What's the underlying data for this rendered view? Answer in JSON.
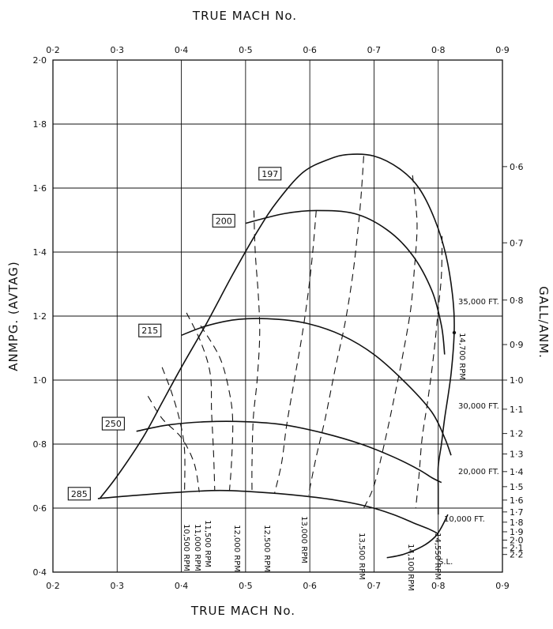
{
  "chart_data": {
    "type": "line",
    "top_title": "TRUE MACH No.",
    "bottom_title": "TRUE MACH No.",
    "ylabel": "ANMPG. (AVTAG)",
    "right_label": "GALL/ANM.",
    "xlim": [
      0.2,
      0.9
    ],
    "ylim": [
      0.4,
      2.0
    ],
    "x_ticks": [
      "0·2",
      "0·3",
      "0·4",
      "0·5",
      "0·6",
      "0·7",
      "0·8",
      "0·9"
    ],
    "y_ticks": [
      "0·4",
      "0·6",
      "0·8",
      "1·0",
      "1·2",
      "1·4",
      "1·6",
      "1·8",
      "2·0"
    ],
    "right_ticks": [
      "0·6",
      "0·7",
      "0·8",
      "0·9",
      "1·0",
      "1·1",
      "1·2",
      "1·3",
      "1·4",
      "1·5",
      "1·6",
      "1·7",
      "1·8",
      "1·9",
      "2·0",
      "2·1",
      "2·2"
    ],
    "right_tick_values": [
      1.667,
      1.429,
      1.25,
      1.111,
      1.0,
      0.909,
      0.833,
      0.769,
      0.714,
      0.667,
      0.625,
      0.588,
      0.556,
      0.526,
      0.5,
      0.476,
      0.455
    ],
    "series": [
      {
        "name": "35,000 FT.",
        "points": [
          [
            0.5,
            1.49
          ],
          [
            0.56,
            1.52
          ],
          [
            0.61,
            1.53
          ],
          [
            0.67,
            1.52
          ],
          [
            0.72,
            1.47
          ],
          [
            0.76,
            1.39
          ],
          [
            0.79,
            1.28
          ],
          [
            0.805,
            1.17
          ],
          [
            0.81,
            1.08
          ]
        ]
      },
      {
        "name": "30,000 FT.",
        "points": [
          [
            0.4,
            1.14
          ],
          [
            0.44,
            1.17
          ],
          [
            0.49,
            1.19
          ],
          [
            0.55,
            1.19
          ],
          [
            0.6,
            1.175
          ],
          [
            0.65,
            1.14
          ],
          [
            0.7,
            1.08
          ],
          [
            0.75,
            0.99
          ],
          [
            0.79,
            0.9
          ],
          [
            0.81,
            0.82
          ],
          [
            0.82,
            0.765
          ]
        ]
      },
      {
        "name": "20,000 FT.",
        "points": [
          [
            0.33,
            0.84
          ],
          [
            0.38,
            0.86
          ],
          [
            0.44,
            0.87
          ],
          [
            0.5,
            0.87
          ],
          [
            0.56,
            0.86
          ],
          [
            0.62,
            0.835
          ],
          [
            0.68,
            0.8
          ],
          [
            0.73,
            0.76
          ],
          [
            0.77,
            0.72
          ],
          [
            0.79,
            0.695
          ],
          [
            0.805,
            0.68
          ]
        ]
      },
      {
        "name": "10,000 FT.",
        "points": [
          [
            0.27,
            0.63
          ],
          [
            0.33,
            0.64
          ],
          [
            0.4,
            0.65
          ],
          [
            0.46,
            0.655
          ],
          [
            0.52,
            0.65
          ],
          [
            0.58,
            0.64
          ],
          [
            0.64,
            0.625
          ],
          [
            0.69,
            0.605
          ],
          [
            0.73,
            0.58
          ],
          [
            0.76,
            0.555
          ],
          [
            0.785,
            0.535
          ],
          [
            0.8,
            0.52
          ]
        ]
      },
      {
        "name": "S.L.",
        "points": [
          [
            0.72,
            0.445
          ],
          [
            0.745,
            0.455
          ],
          [
            0.775,
            0.48
          ],
          [
            0.795,
            0.51
          ],
          [
            0.805,
            0.54
          ],
          [
            0.815,
            0.58
          ]
        ]
      }
    ],
    "envelope": {
      "points": [
        [
          0.273,
          0.63
        ],
        [
          0.3,
          0.7
        ],
        [
          0.34,
          0.82
        ],
        [
          0.37,
          0.93
        ],
        [
          0.4,
          1.04
        ],
        [
          0.44,
          1.18
        ],
        [
          0.48,
          1.33
        ],
        [
          0.52,
          1.47
        ],
        [
          0.55,
          1.56
        ],
        [
          0.59,
          1.65
        ],
        [
          0.63,
          1.69
        ],
        [
          0.66,
          1.705
        ],
        [
          0.7,
          1.7
        ],
        [
          0.74,
          1.66
        ],
        [
          0.77,
          1.6
        ],
        [
          0.795,
          1.5
        ],
        [
          0.812,
          1.39
        ],
        [
          0.822,
          1.27
        ],
        [
          0.825,
          1.16
        ],
        [
          0.82,
          1.02
        ],
        [
          0.81,
          0.88
        ],
        [
          0.805,
          0.8
        ],
        [
          0.8,
          0.73
        ],
        [
          0.8,
          0.66
        ],
        [
          0.8,
          0.58
        ]
      ]
    },
    "tas_labels": [
      {
        "text": "197",
        "x": 0.538,
        "y": 1.645
      },
      {
        "text": "200",
        "x": 0.466,
        "y": 1.498
      },
      {
        "text": "215",
        "x": 0.351,
        "y": 1.155
      },
      {
        "text": "250",
        "x": 0.294,
        "y": 0.864
      },
      {
        "text": "285",
        "x": 0.241,
        "y": 0.645
      }
    ],
    "rpm_lines": [
      {
        "label": "10,500 RPM",
        "points": [
          [
            0.37,
            1.04
          ],
          [
            0.385,
            0.96
          ],
          [
            0.398,
            0.87
          ],
          [
            0.405,
            0.78
          ],
          [
            0.405,
            0.65
          ]
        ]
      },
      {
        "label": "11,000 RPM",
        "points": [
          [
            0.348,
            0.95
          ],
          [
            0.37,
            0.88
          ],
          [
            0.4,
            0.82
          ],
          [
            0.42,
            0.74
          ],
          [
            0.428,
            0.65
          ]
        ]
      },
      {
        "label": "11,500 RPM",
        "points": [
          [
            0.408,
            1.21
          ],
          [
            0.43,
            1.12
          ],
          [
            0.445,
            1.02
          ],
          [
            0.447,
            0.9
          ],
          [
            0.45,
            0.78
          ],
          [
            0.452,
            0.655
          ]
        ]
      },
      {
        "label": "12,000 RPM",
        "points": [
          [
            0.43,
            1.17
          ],
          [
            0.46,
            1.07
          ],
          [
            0.475,
            0.96
          ],
          [
            0.48,
            0.87
          ],
          [
            0.478,
            0.74
          ],
          [
            0.475,
            0.655
          ]
        ]
      },
      {
        "label": "12,500 RPM",
        "points": [
          [
            0.513,
            1.53
          ],
          [
            0.515,
            1.4
          ],
          [
            0.52,
            1.26
          ],
          [
            0.522,
            1.14
          ],
          [
            0.518,
            1.0
          ],
          [
            0.512,
            0.88
          ],
          [
            0.51,
            0.74
          ],
          [
            0.51,
            0.65
          ]
        ]
      },
      {
        "label": "13,000 RPM",
        "points": [
          [
            0.61,
            1.53
          ],
          [
            0.605,
            1.41
          ],
          [
            0.598,
            1.28
          ],
          [
            0.588,
            1.14
          ],
          [
            0.576,
            1.0
          ],
          [
            0.564,
            0.86
          ],
          [
            0.556,
            0.74
          ],
          [
            0.545,
            0.645
          ]
        ]
      },
      {
        "label": "13,500 RPM",
        "points": [
          [
            0.684,
            1.7
          ],
          [
            0.68,
            1.58
          ],
          [
            0.675,
            1.47
          ],
          [
            0.667,
            1.33
          ],
          [
            0.655,
            1.18
          ],
          [
            0.64,
            1.04
          ],
          [
            0.624,
            0.88
          ],
          [
            0.61,
            0.76
          ],
          [
            0.598,
            0.64
          ]
        ]
      },
      {
        "label": "14,100 RPM",
        "points": [
          [
            0.76,
            1.64
          ],
          [
            0.765,
            1.55
          ],
          [
            0.767,
            1.47
          ],
          [
            0.763,
            1.35
          ],
          [
            0.757,
            1.22
          ],
          [
            0.745,
            1.08
          ],
          [
            0.731,
            0.94
          ],
          [
            0.716,
            0.8
          ],
          [
            0.7,
            0.67
          ],
          [
            0.684,
            0.6
          ]
        ]
      },
      {
        "label": "14,550 RPM",
        "points": [
          [
            0.806,
            1.45
          ],
          [
            0.805,
            1.33
          ],
          [
            0.8,
            1.22
          ],
          [
            0.793,
            1.08
          ],
          [
            0.784,
            0.94
          ],
          [
            0.775,
            0.82
          ],
          [
            0.77,
            0.7
          ],
          [
            0.765,
            0.6
          ]
        ]
      }
    ],
    "altitude_labels": [
      "35,000 FT.",
      "30,000 FT.",
      "20,000 FT.",
      "10,000 FT.",
      "S.L."
    ],
    "max_rpm_label": "14,700 RPM",
    "rpm_text": [
      "10,500 RPM",
      "11,000 RPM",
      "11,500 RPM",
      "12,000 RPM",
      "12,500 RPM",
      "13,000 RPM",
      "13,500 RPM",
      "14,100 RPM",
      "14,550 RPM"
    ],
    "grid": true
  }
}
